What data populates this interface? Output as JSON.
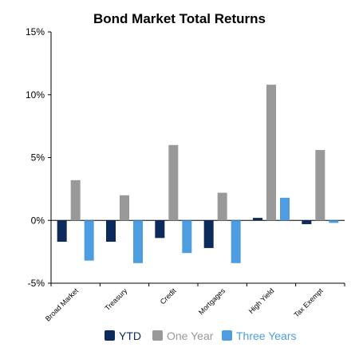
{
  "chart_data": {
    "type": "bar",
    "title": "Bond Market Total Returns",
    "xlabel": "",
    "ylabel": "",
    "categories": [
      "Broad Market",
      "Treasury",
      "Credit",
      "Mortgages",
      "High Yield",
      "Tax Exempt"
    ],
    "ylim": [
      -5,
      15
    ],
    "yticks": [
      -5,
      0,
      5,
      10,
      15
    ],
    "ytick_labels": [
      "-5%",
      "0%",
      "5%",
      "10%",
      "15%"
    ],
    "grid": false,
    "legend_position": "bottom",
    "series": [
      {
        "name": "YTD",
        "color": "#0d2a5c",
        "values": [
          -1.7,
          -1.7,
          -1.4,
          -2.2,
          0.2,
          -0.3
        ]
      },
      {
        "name": "One Year",
        "color": "#999999",
        "values": [
          3.2,
          2.0,
          6.0,
          2.2,
          10.8,
          5.6
        ]
      },
      {
        "name": "Three Years",
        "color": "#4d9de0",
        "values": [
          -3.2,
          -3.4,
          -2.6,
          -3.4,
          1.8,
          -0.2
        ]
      }
    ]
  }
}
